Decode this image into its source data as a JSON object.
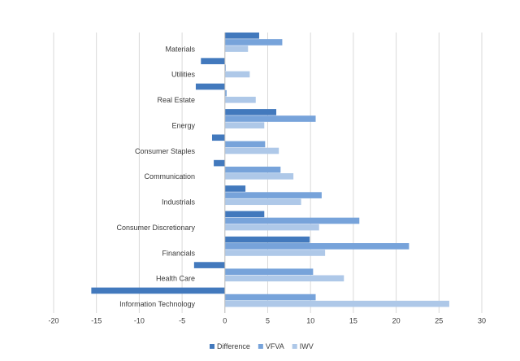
{
  "chart_data": {
    "type": "bar",
    "orientation": "horizontal",
    "categories": [
      "Materials",
      "Utilities",
      "Real Estate",
      "Energy",
      "Consumer Staples",
      "Communication",
      "Industrials",
      "Consumer Discretionary",
      "Financials",
      "Health Care",
      "Information Technology"
    ],
    "series": [
      {
        "name": "Difference",
        "color": "#4279bd",
        "values": [
          4.0,
          -2.8,
          -3.4,
          6.0,
          -1.5,
          -1.3,
          2.4,
          4.6,
          9.9,
          -3.6,
          -15.6
        ]
      },
      {
        "name": "VFVA",
        "color": "#77a3da",
        "values": [
          6.7,
          0.1,
          0.2,
          10.6,
          4.7,
          6.5,
          11.3,
          15.7,
          21.5,
          10.3,
          10.6
        ]
      },
      {
        "name": "IWV",
        "color": "#aec8e8",
        "values": [
          2.7,
          2.9,
          3.6,
          4.6,
          6.3,
          8.0,
          8.9,
          11.0,
          11.7,
          13.9,
          26.2
        ]
      }
    ],
    "xlim": [
      -20,
      30
    ],
    "xticks": [
      -20,
      -15,
      -10,
      -5,
      0,
      5,
      10,
      15,
      20,
      25,
      30
    ],
    "grid": true,
    "legend": "bottom"
  }
}
